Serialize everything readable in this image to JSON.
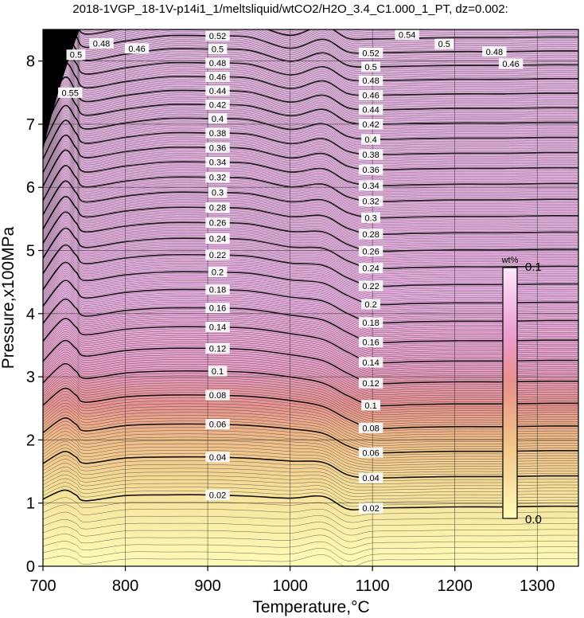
{
  "chart_data": {
    "type": "contour",
    "title": "2018-1VGP_18-1V-p14i1_1/meltsliquid/wtCO2/H2O_3.4_C1.000_1_PT, dz=0.002:",
    "xlabel": "Temperature,°C",
    "ylabel": "Pressure,x100MPa",
    "xlim": [
      700,
      1350
    ],
    "ylim": [
      0,
      8.5
    ],
    "x_ticks": [
      700,
      800,
      900,
      1000,
      1100,
      1200,
      1300
    ],
    "x_tick_labels": [
      "700",
      "800",
      "900",
      "1000",
      "1100",
      "1200",
      "1300"
    ],
    "y_ticks": [
      0,
      1,
      2,
      3,
      4,
      5,
      6,
      7,
      8
    ],
    "y_tick_labels": [
      "0",
      "1",
      "2",
      "3",
      "4",
      "5",
      "6",
      "7",
      "8"
    ],
    "grid": true,
    "contour_interval": 0.002,
    "colorbar": {
      "unit": "wt%",
      "min_label": "0.0",
      "max_label": "0.1",
      "colors": [
        "#fdfcb8",
        "#f2c488",
        "#e88f8d",
        "#eba0d5",
        "#f3c0ee",
        "#fbe8fb"
      ]
    },
    "labeled_contours": {
      "label_temperature_left": 900,
      "label_temperature_right": 1100,
      "levels": [
        {
          "label": "0.02",
          "p900": 1.13,
          "p1100": 0.92
        },
        {
          "label": "0.04",
          "p900": 1.73,
          "p1100": 1.4
        },
        {
          "label": "0.06",
          "p900": 2.25,
          "p1100": 1.8
        },
        {
          "label": "0.08",
          "p900": 2.71,
          "p1100": 2.19
        },
        {
          "label": "0.1",
          "p900": 3.09,
          "p1100": 2.55
        },
        {
          "label": "0.12",
          "p900": 3.45,
          "p1100": 2.9
        },
        {
          "label": "0.14",
          "p900": 3.79,
          "p1100": 3.23
        },
        {
          "label": "0.16",
          "p900": 4.09,
          "p1100": 3.55
        },
        {
          "label": "0.18",
          "p900": 4.38,
          "p1100": 3.86
        },
        {
          "label": "0.2",
          "p900": 4.66,
          "p1100": 4.15
        },
        {
          "label": "0.22",
          "p900": 4.93,
          "p1100": 4.44
        },
        {
          "label": "0.24",
          "p900": 5.19,
          "p1100": 4.72
        },
        {
          "label": "0.26",
          "p900": 5.44,
          "p1100": 4.99
        },
        {
          "label": "0.28",
          "p900": 5.68,
          "p1100": 5.26
        },
        {
          "label": "0.3",
          "p900": 5.92,
          "p1100": 5.52
        },
        {
          "label": "0.32",
          "p900": 6.16,
          "p1100": 5.78
        },
        {
          "label": "0.34",
          "p900": 6.4,
          "p1100": 6.03
        },
        {
          "label": "0.36",
          "p900": 6.63,
          "p1100": 6.28
        },
        {
          "label": "0.38",
          "p900": 6.86,
          "p1100": 6.52
        },
        {
          "label": "0.4",
          "p900": 7.09,
          "p1100": 6.76
        },
        {
          "label": "0.42",
          "p900": 7.31,
          "p1100": 7.0
        },
        {
          "label": "0.44",
          "p900": 7.53,
          "p1100": 7.23
        },
        {
          "label": "0.46",
          "p900": 7.75,
          "p1100": 7.46
        },
        {
          "label": "0.48",
          "p900": 7.97,
          "p1100": 7.69
        },
        {
          "label": "0.5",
          "p900": 8.19,
          "p1100": 7.91
        },
        {
          "label": "0.52",
          "p900": 8.4,
          "p1100": 8.13
        }
      ]
    },
    "other_labels": [
      {
        "label": "0.54",
        "t": 1142,
        "p": 8.42
      },
      {
        "label": "0.5",
        "t": 1187,
        "p": 8.27
      },
      {
        "label": "0.48",
        "t": 1248,
        "p": 8.15
      },
      {
        "label": "0.46",
        "t": 1268,
        "p": 7.96
      },
      {
        "label": "0.48",
        "t": 771,
        "p": 8.28
      },
      {
        "label": "0.46",
        "t": 814,
        "p": 8.2
      },
      {
        "label": "0.5",
        "t": 740,
        "p": 8.1
      },
      {
        "label": "0.55",
        "t": 733,
        "p": 7.5
      }
    ]
  }
}
